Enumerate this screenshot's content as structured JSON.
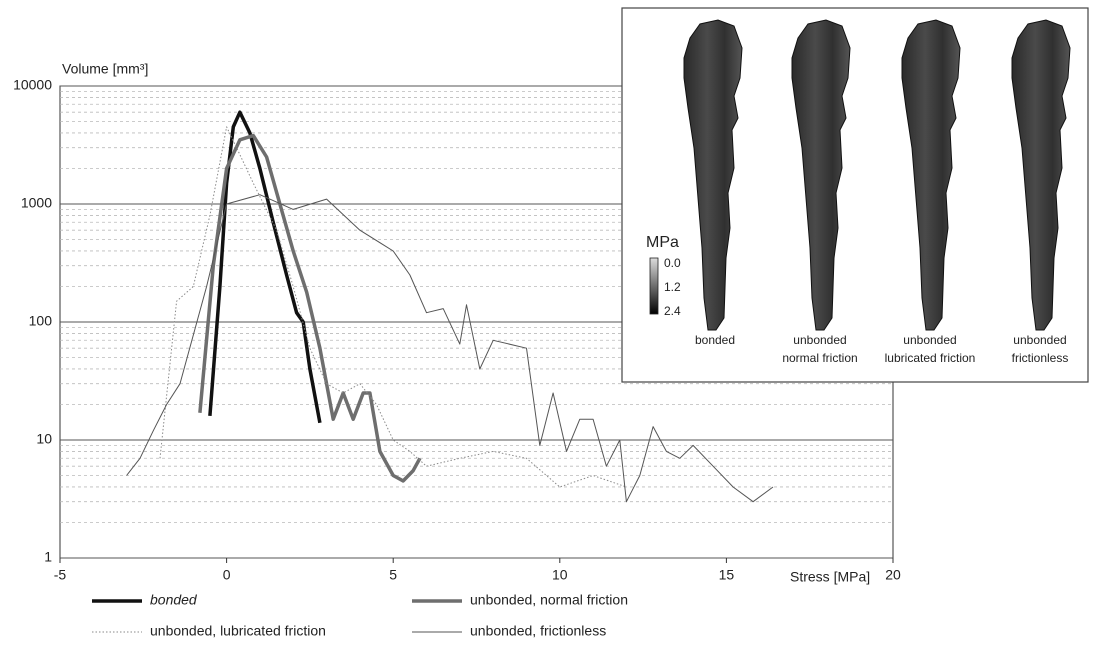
{
  "chart_data": {
    "type": "line",
    "ylabel": "Volume [mm³]",
    "xlabel": "Stress [MPa]",
    "xlim": [
      -5,
      20
    ],
    "xticks": [
      -5,
      0,
      5,
      10,
      15,
      20
    ],
    "ylim": [
      1,
      10000
    ],
    "yticks": [
      1,
      10,
      100,
      1000,
      10000
    ],
    "log_y": true,
    "grid": true,
    "minor_grid": true,
    "legend": "bottom",
    "series": [
      {
        "name": "bonded",
        "color": "#111111",
        "style": "thick",
        "x": [
          -0.5,
          -0.2,
          0,
          0.2,
          0.4,
          0.7,
          1.0,
          1.4,
          1.8,
          2.1,
          2.3,
          2.5,
          2.8
        ],
        "values": [
          16,
          200,
          1500,
          4500,
          6000,
          4000,
          2000,
          700,
          250,
          120,
          100,
          40,
          14
        ]
      },
      {
        "name": "unbonded, normal friction",
        "color": "#6e6e6e",
        "style": "thick",
        "x": [
          -0.8,
          -0.4,
          0,
          0.4,
          0.8,
          1.2,
          1.6,
          2.0,
          2.4,
          2.8,
          3.2,
          3.5,
          3.8,
          4.1,
          4.3,
          4.6,
          5.0,
          5.3,
          5.6,
          5.8
        ],
        "values": [
          17,
          300,
          2000,
          3500,
          3800,
          2500,
          1000,
          400,
          180,
          60,
          15,
          25,
          15,
          25,
          25,
          8,
          5,
          4.5,
          5.5,
          7
        ]
      },
      {
        "name": "unbonded, lubricated friction",
        "color": "#8a8a8a",
        "style": "dotted",
        "x": [
          -2,
          -1.5,
          -1,
          -0.5,
          0,
          0.3,
          0.8,
          1.5,
          2,
          2.5,
          3,
          3.5,
          4,
          4.5,
          5,
          5.5,
          6,
          7,
          8,
          9,
          10,
          11,
          12
        ],
        "values": [
          7,
          150,
          200,
          800,
          4500,
          3000,
          1500,
          600,
          200,
          60,
          30,
          25,
          30,
          20,
          10,
          8,
          6,
          7,
          8,
          7,
          4,
          5,
          4
        ]
      },
      {
        "name": "unbonded, frictionless",
        "color": "#555555",
        "style": "thin",
        "x": [
          -3,
          -2.6,
          -2.2,
          -1.8,
          -1.4,
          -0.6,
          0,
          1,
          2,
          3,
          4,
          5,
          5.5,
          6,
          6.5,
          7,
          7.2,
          7.6,
          8,
          9,
          9.4,
          9.8,
          10.2,
          10.6,
          11,
          11.4,
          11.8,
          12,
          12.4,
          12.8,
          13.2,
          13.6,
          14,
          14.6,
          15.2,
          15.8,
          16.4
        ],
        "values": [
          5,
          7,
          12,
          20,
          30,
          200,
          1000,
          1200,
          900,
          1100,
          600,
          400,
          250,
          120,
          130,
          65,
          140,
          40,
          70,
          60,
          9,
          25,
          8,
          15,
          15,
          6,
          10,
          3,
          5,
          13,
          8,
          7,
          9,
          6,
          4,
          3,
          4
        ]
      }
    ],
    "inset": {
      "colorbar_title": "MPa",
      "colorbar_ticks": [
        "0.0",
        "1.2",
        "2.4"
      ],
      "labels": [
        [
          "bonded"
        ],
        [
          "unbonded",
          "normal friction"
        ],
        [
          "unbonded",
          "lubricated friction"
        ],
        [
          "unbonded",
          "frictionless"
        ]
      ]
    }
  }
}
